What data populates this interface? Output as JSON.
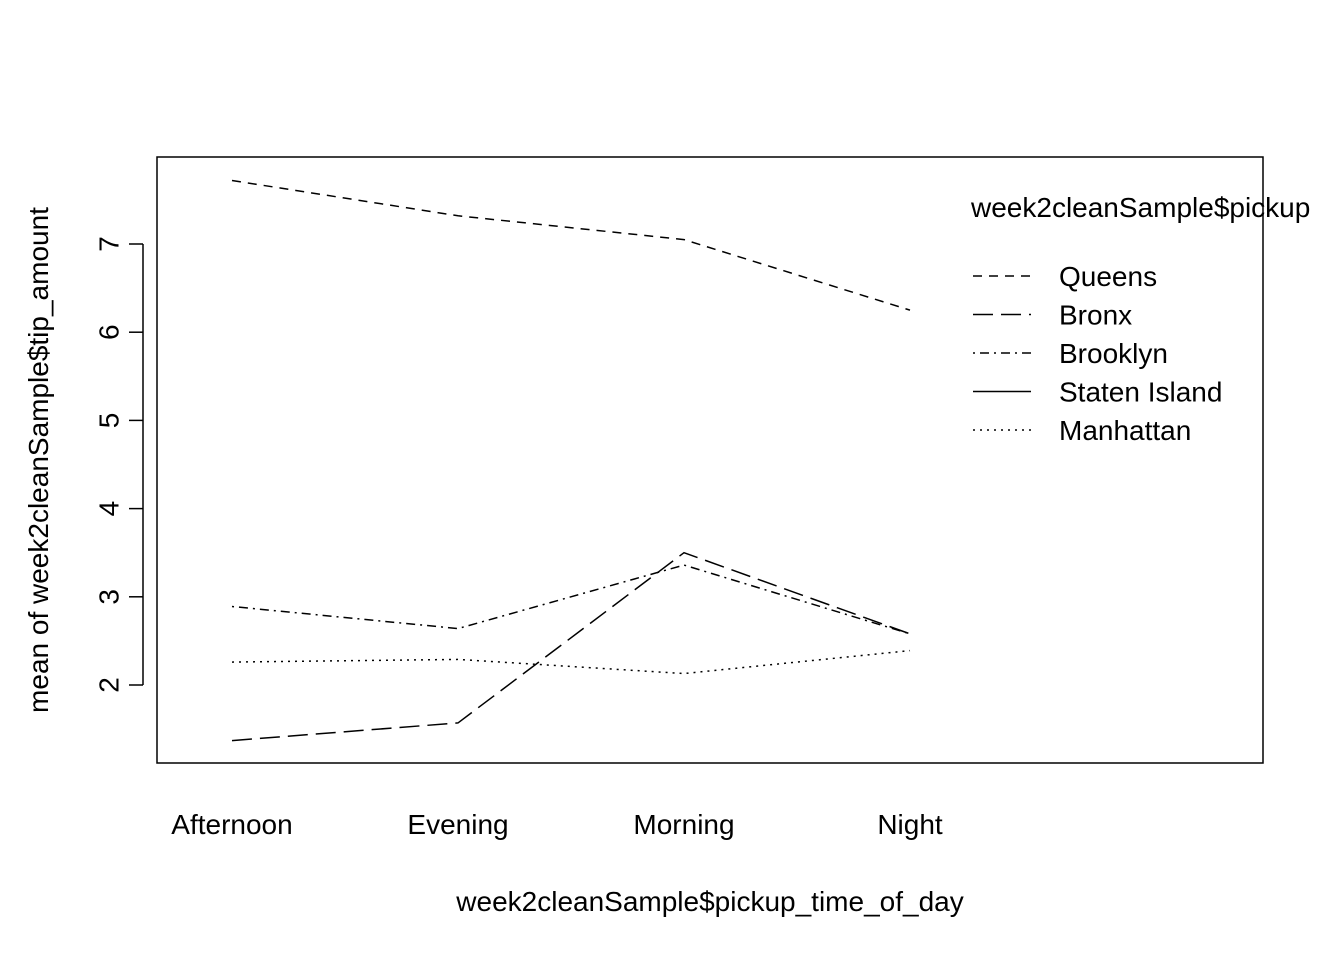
{
  "chart_data": {
    "type": "line",
    "title": "",
    "xlabel": "week2cleanSample$pickup_time_of_day",
    "ylabel": "mean of  week2cleanSample$tip_amount",
    "categories": [
      "Afternoon",
      "Evening",
      "Morning",
      "Night"
    ],
    "ylim": [
      1.25,
      8.1
    ],
    "yticks": [
      "2",
      "3",
      "4",
      "5",
      "6",
      "7"
    ],
    "grid": false,
    "legend": {
      "title": "week2cleanSample$pickup",
      "placement": "top-right"
    },
    "series": [
      {
        "name": "Queens",
        "dash": "dashed",
        "values": [
          7.72,
          7.32,
          7.05,
          6.25
        ]
      },
      {
        "name": "Bronx",
        "dash": "longdash",
        "values": [
          1.37,
          1.57,
          3.5,
          2.58
        ]
      },
      {
        "name": "Brooklyn",
        "dash": "dotdash",
        "values": [
          2.89,
          2.64,
          3.36,
          2.58
        ]
      },
      {
        "name": "Staten Island",
        "dash": "solid",
        "values": [
          null,
          null,
          null,
          null
        ]
      },
      {
        "name": "Manhattan",
        "dash": "dotted",
        "values": [
          2.26,
          2.29,
          2.13,
          2.39
        ]
      }
    ]
  }
}
